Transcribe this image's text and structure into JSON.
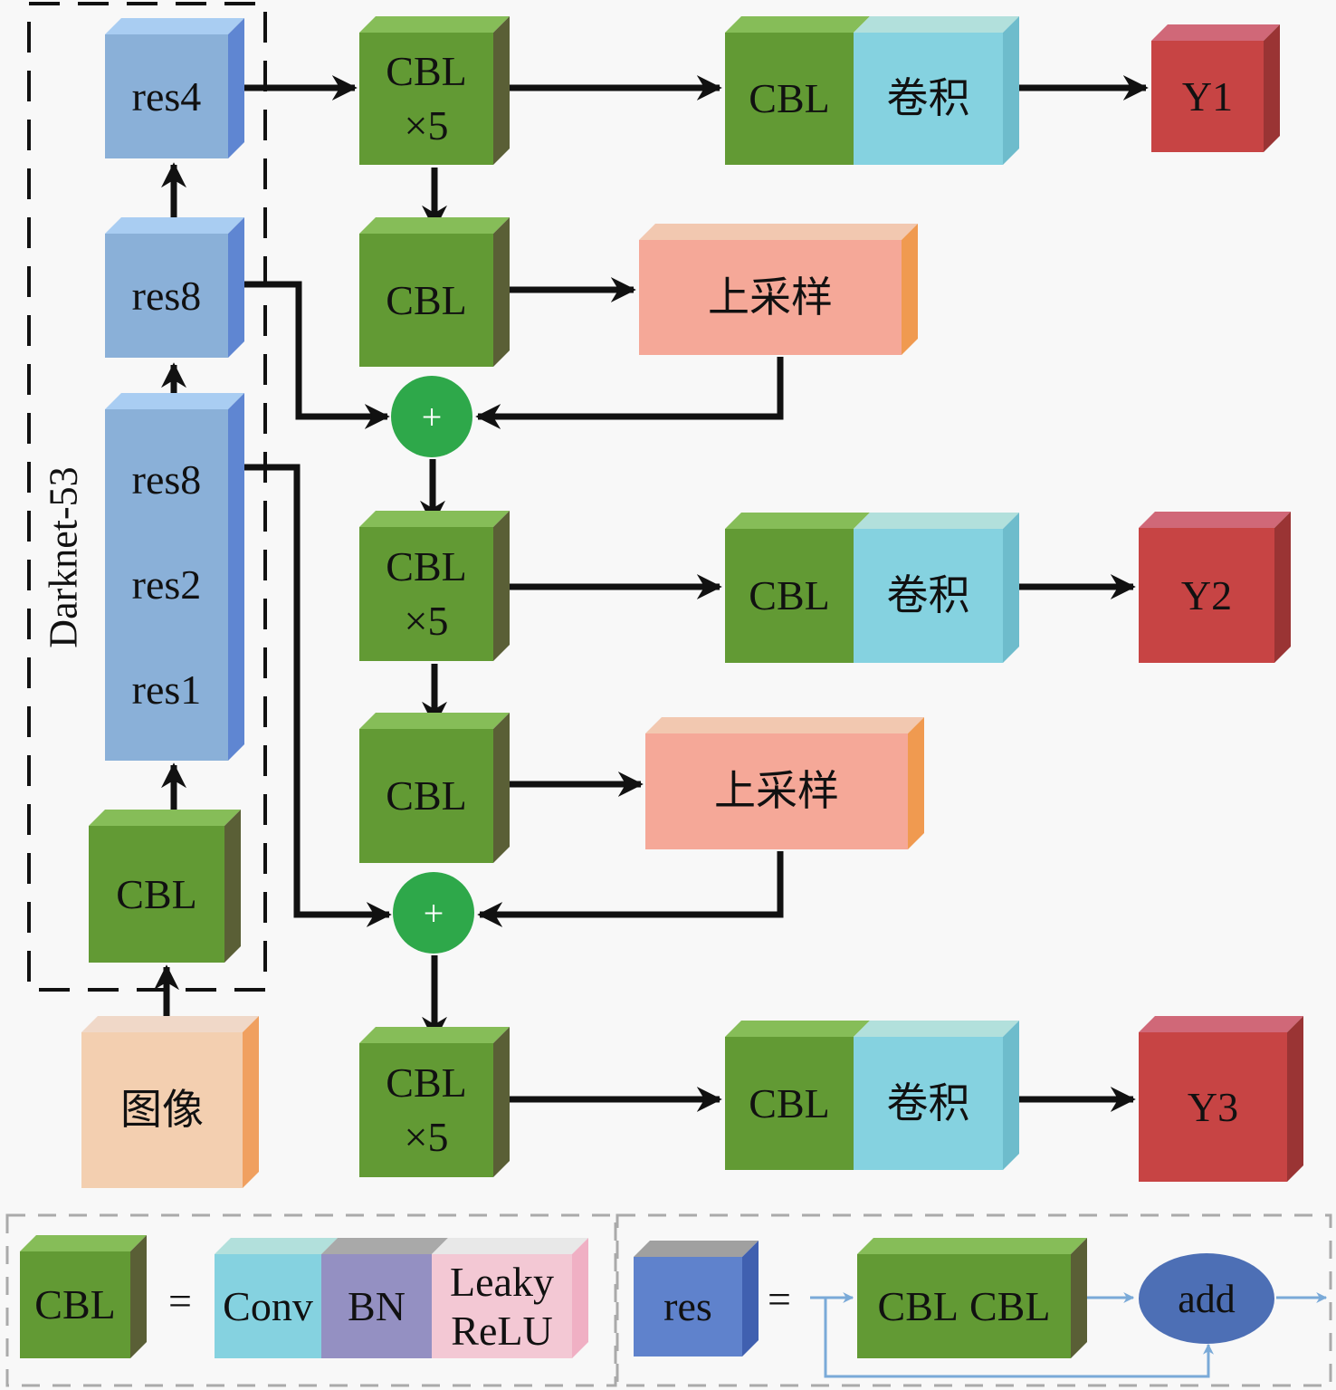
{
  "backbone": {
    "label": "Darknet-53",
    "res4": "res4",
    "res8_a": "res8",
    "res8_b": "res8",
    "res2": "res2",
    "res1": "res1",
    "cbl": "CBL",
    "image": "图像"
  },
  "neck": {
    "cbl_x5_1": [
      "CBL",
      "×5"
    ],
    "cbl_2": "CBL",
    "upsample_1": "上采样",
    "plus_1": "+",
    "cbl_x5_3": [
      "CBL",
      "×5"
    ],
    "cbl_4": "CBL",
    "upsample_2": "上采样",
    "plus_2": "+",
    "cbl_x5_5": [
      "CBL",
      "×5"
    ]
  },
  "heads": [
    {
      "cbl": "CBL",
      "conv": "卷积",
      "out": "Y1"
    },
    {
      "cbl": "CBL",
      "conv": "卷积",
      "out": "Y2"
    },
    {
      "cbl": "CBL",
      "conv": "卷积",
      "out": "Y3"
    }
  ],
  "legend": {
    "cbl": "CBL",
    "equals": "=",
    "conv": "Conv",
    "bn": "BN",
    "leaky": "Leaky",
    "relu": "ReLU",
    "res": "res",
    "equals2": "=",
    "cbl_a": "CBL",
    "cbl_b": "CBL",
    "add": "add"
  },
  "colors": {
    "cbl": "#629a34",
    "res": "#8ab0d8",
    "conv": "#85d2e0",
    "upsample": "#f5a898",
    "output": "#c74444",
    "plus": "#2ea84a",
    "add": "#4d6fb5"
  }
}
